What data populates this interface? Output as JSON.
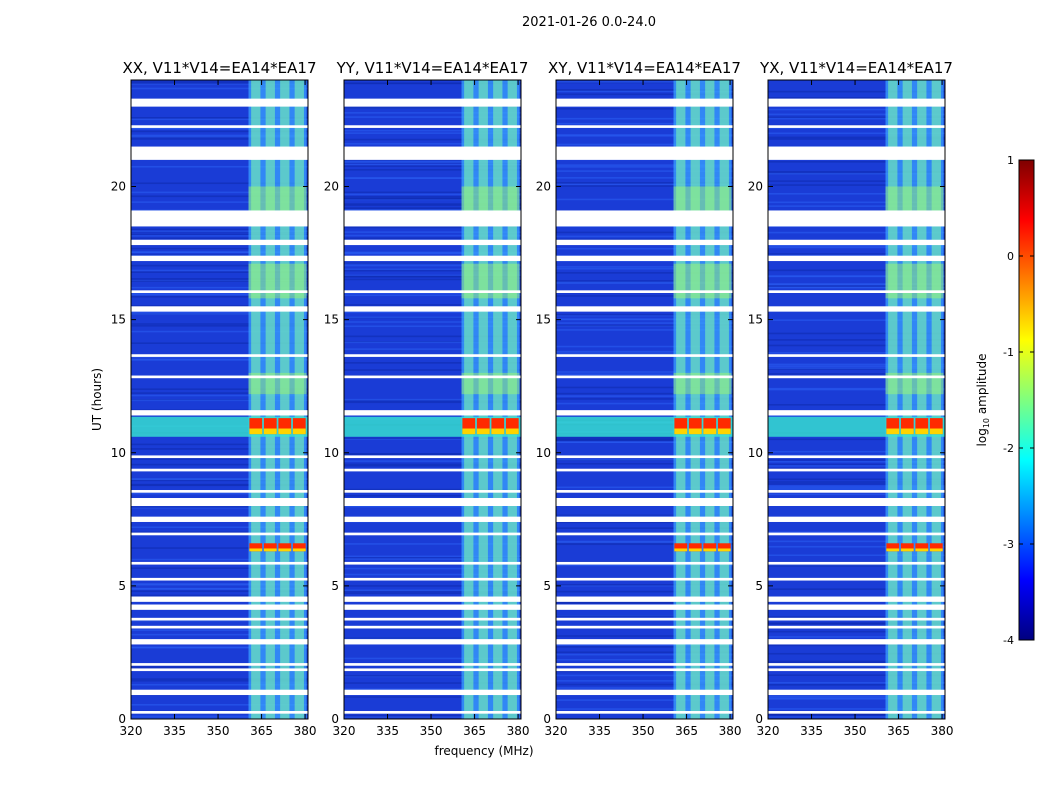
{
  "figure_title": "2021-01-26 0.0-24.0",
  "chart_data": [
    {
      "type": "heatmap",
      "title": "XX, V11*V14=EA14*EA17",
      "xlabel": "",
      "ylabel": "UT (hours)",
      "xlim": [
        320,
        381
      ],
      "ylim": [
        0,
        24
      ],
      "xticks": [
        320,
        335,
        350,
        365,
        380
      ],
      "yticks": [
        0,
        5,
        10,
        15,
        20
      ],
      "bright_band_MHz": [
        360.5,
        380.5
      ],
      "flare_hours": [
        [
          10.7,
          11.3
        ],
        [
          6.3,
          6.6
        ]
      ]
    },
    {
      "type": "heatmap",
      "title": "YY, V11*V14=EA14*EA17",
      "xlabel": "frequency (MHz)",
      "ylabel": "",
      "xlim": [
        320,
        381
      ],
      "ylim": [
        0,
        24
      ],
      "xticks": [
        320,
        335,
        350,
        365,
        380
      ],
      "yticks": [
        0,
        5,
        10,
        15,
        20
      ],
      "bright_band_MHz": [
        360.5,
        380.5
      ],
      "flare_hours": [
        [
          10.7,
          11.3
        ]
      ]
    },
    {
      "type": "heatmap",
      "title": "XY, V11*V14=EA14*EA17",
      "xlabel": "",
      "ylabel": "",
      "xlim": [
        320,
        381
      ],
      "ylim": [
        0,
        24
      ],
      "xticks": [
        320,
        335,
        350,
        365,
        380
      ],
      "yticks": [
        0,
        5,
        10,
        15,
        20
      ],
      "bright_band_MHz": [
        360.5,
        380.5
      ],
      "flare_hours": [
        [
          10.7,
          11.3
        ],
        [
          6.3,
          6.6
        ]
      ]
    },
    {
      "type": "heatmap",
      "title": "YX, V11*V14=EA14*EA17",
      "xlabel": "",
      "ylabel": "",
      "xlim": [
        320,
        381
      ],
      "ylim": [
        0,
        24
      ],
      "xticks": [
        320,
        335,
        350,
        365,
        380
      ],
      "yticks": [
        0,
        5,
        10,
        15,
        20
      ],
      "bright_band_MHz": [
        360.5,
        380.5
      ],
      "flare_hours": [
        [
          10.7,
          11.3
        ],
        [
          6.3,
          6.6
        ]
      ]
    }
  ],
  "flagged_hours": [
    [
      0.2,
      0.3
    ],
    [
      0.9,
      1.1
    ],
    [
      1.8,
      1.9
    ],
    [
      2.0,
      2.1
    ],
    [
      2.8,
      3.0
    ],
    [
      3.4,
      3.5
    ],
    [
      3.7,
      3.8
    ],
    [
      4.1,
      4.3
    ],
    [
      4.4,
      4.6
    ],
    [
      5.2,
      5.3
    ],
    [
      5.8,
      5.9
    ],
    [
      6.9,
      7.0
    ],
    [
      7.4,
      7.6
    ],
    [
      8.0,
      8.3
    ],
    [
      8.5,
      8.6
    ],
    [
      9.3,
      9.4
    ],
    [
      9.8,
      9.9
    ],
    [
      11.4,
      11.6
    ],
    [
      12.8,
      12.9
    ],
    [
      13.6,
      13.7
    ],
    [
      15.3,
      15.5
    ],
    [
      16.0,
      16.1
    ],
    [
      17.2,
      17.4
    ],
    [
      17.8,
      18.0
    ],
    [
      18.5,
      19.1
    ],
    [
      21.0,
      21.5
    ],
    [
      22.2,
      22.3
    ],
    [
      23.0,
      23.3
    ]
  ],
  "colorbar": {
    "label": "log",
    "label_sub": "10",
    "label_rest": " amplitude",
    "ticks": [
      1,
      0,
      -1,
      -2,
      -3,
      -4
    ],
    "range": [
      -4,
      1
    ],
    "colormap": [
      "#00007f",
      "#0000ff",
      "#007fff",
      "#00ffff",
      "#7fff7f",
      "#ffff00",
      "#ff7f00",
      "#ff0000",
      "#7f0000"
    ]
  },
  "colors": {
    "background": "#1a3cd6",
    "flag": "#ffffff",
    "band_low": "#3aa0ff",
    "band_high": "#7fffaa",
    "flare": "#ff2a00"
  }
}
